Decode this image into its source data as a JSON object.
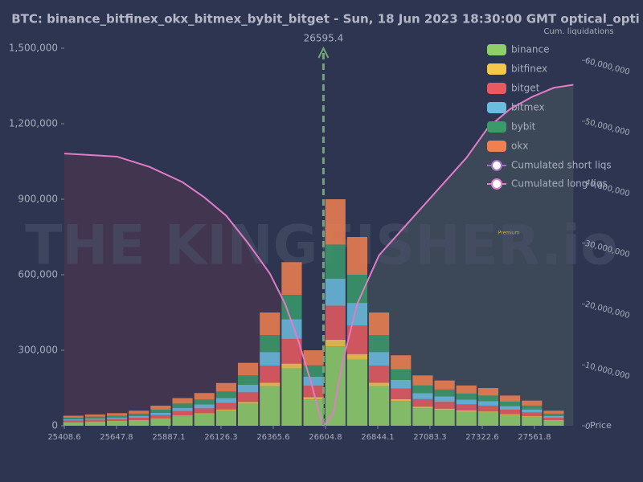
{
  "chart_data": {
    "type": "stacked_histogram",
    "title": "BTC: binance_bitfinex_okx_bitmex_bybit_bitget - Sun, 18 Jun 2023 18:30:00 GMT optical_opti",
    "xlabel": "Price",
    "y2label": "Cum. liquidations",
    "watermark": "THE KINGFISHER.io",
    "badge": "Premium",
    "current_price": 26595.4,
    "bins": [
      25400,
      25500,
      25600,
      25700,
      25800,
      25900,
      26000,
      26100,
      26200,
      26300,
      26400,
      26500,
      26600,
      26700,
      26800,
      26900,
      27000,
      27100,
      27200,
      27300,
      27400,
      27500,
      27600,
      27700
    ],
    "series": [
      {
        "name": "binance",
        "color": "#8fcf6a",
        "values": [
          14000,
          16000,
          18000,
          21000,
          28000,
          38000,
          46000,
          60000,
          88000,
          158000,
          228000,
          105000,
          315000,
          263000,
          158000,
          98000,
          70000,
          63000,
          56000,
          53000,
          42000,
          35000,
          21000
        ]
      },
      {
        "name": "bitfinex",
        "color": "#f5c84c",
        "values": [
          1000,
          1000,
          2000,
          2000,
          2000,
          3000,
          4000,
          5000,
          7000,
          13000,
          19000,
          9000,
          27000,
          22000,
          13000,
          8000,
          6000,
          5000,
          5000,
          4000,
          4000,
          3000,
          2000
        ]
      },
      {
        "name": "bitget",
        "color": "#e85a60",
        "values": [
          6000,
          7000,
          7000,
          9000,
          12000,
          17000,
          19000,
          25000,
          38000,
          68000,
          98000,
          45000,
          135000,
          113000,
          68000,
          42000,
          30000,
          27000,
          24000,
          23000,
          18000,
          15000,
          9000
        ]
      },
      {
        "name": "bitmex",
        "color": "#6bbde0",
        "values": [
          5000,
          5000,
          6000,
          7000,
          10000,
          13000,
          16000,
          20000,
          30000,
          54000,
          78000,
          36000,
          108000,
          90000,
          54000,
          34000,
          24000,
          22000,
          19000,
          18000,
          14000,
          12000,
          7000
        ]
      },
      {
        "name": "bybit",
        "color": "#3a9a6a",
        "values": [
          6000,
          7000,
          7000,
          9000,
          12000,
          17000,
          19000,
          26000,
          37000,
          67000,
          97000,
          45000,
          135000,
          112000,
          67000,
          42000,
          30000,
          27000,
          24000,
          22000,
          18000,
          15000,
          9000
        ]
      },
      {
        "name": "okx",
        "color": "#f08050",
        "values": [
          8000,
          9000,
          10000,
          12000,
          16000,
          22000,
          26000,
          34000,
          50000,
          90000,
          130000,
          60000,
          180000,
          150000,
          90000,
          56000,
          40000,
          36000,
          32000,
          30000,
          24000,
          20000,
          12000
        ]
      }
    ],
    "lines": [
      {
        "name": "Cumulated short liqs",
        "color": "#e07cc8",
        "fill": "#3e4a58",
        "axis": "y2",
        "x": [
          26595.4,
          26640,
          26680,
          26750,
          26850,
          26950,
          27050,
          27150,
          27250,
          27350,
          27450,
          27550,
          27650,
          27740
        ],
        "values": [
          0,
          2000000,
          10000000,
          20000000,
          28000000,
          32000000,
          36000000,
          40000000,
          44000000,
          49000000,
          52000000,
          54000000,
          55500000,
          56000000
        ]
      },
      {
        "name": "Cumulated long liqs",
        "color": "#e07cc8",
        "fill": "#443550",
        "axis": "y2",
        "x": [
          25408.6,
          25650,
          25800,
          25950,
          26050,
          26150,
          26250,
          26350,
          26420,
          26480,
          26540,
          26580,
          26595.4
        ],
        "values": [
          44700000,
          44200000,
          42500000,
          40000000,
          37500000,
          34500000,
          30000000,
          25000000,
          20000000,
          14000000,
          7000000,
          1500000,
          0
        ]
      }
    ],
    "xlim": [
      25408.6,
      27757
    ],
    "xticks": [
      25408.6,
      25647.8,
      25887.1,
      26126.3,
      26365.6,
      26604.8,
      26844.1,
      27083.3,
      27322.6,
      27561.8
    ],
    "ylim": [
      0,
      1500000
    ],
    "yticks": [
      0,
      {
        "value": 300000,
        "label": "300,000"
      },
      {
        "value": 600000,
        "label": "600,000"
      },
      {
        "value": 900000,
        "label": "900,000"
      },
      {
        "value": 1200000,
        "label": "1,200,000"
      },
      {
        "value": 1500000,
        "label": "1,500,000"
      }
    ],
    "y2lim": [
      0,
      62000000
    ],
    "y2ticks": [
      0,
      {
        "value": 10000000,
        "label": "10,000,000"
      },
      {
        "value": 20000000,
        "label": "20,000,000"
      },
      {
        "value": 30000000,
        "label": "30,000,000"
      },
      {
        "value": 40000000,
        "label": "40,000,000"
      },
      {
        "value": 50000000,
        "label": "50,000,000"
      },
      {
        "value": 60000000,
        "label": "60,000,000"
      }
    ],
    "grid": false,
    "legend": "upper right"
  }
}
